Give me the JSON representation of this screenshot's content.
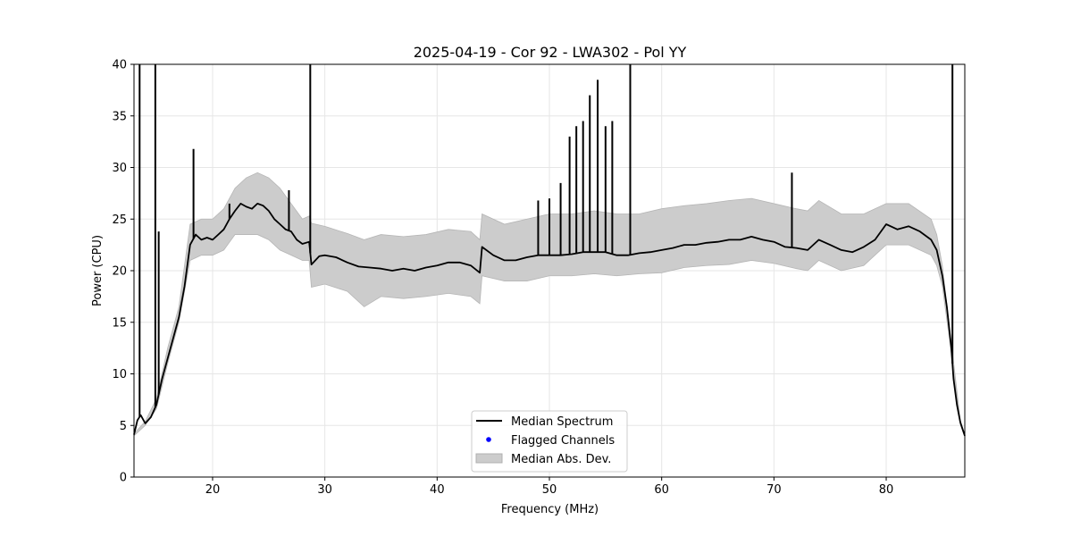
{
  "chart_data": {
    "type": "line",
    "title": "2025-04-19 - Cor 92 - LWA302 - Pol YY",
    "xlabel": "Frequency (MHz)",
    "ylabel": "Power (CPU)",
    "xlim": [
      13.0,
      87.0
    ],
    "ylim": [
      0,
      40
    ],
    "xticks": [
      20,
      30,
      40,
      50,
      60,
      70,
      80
    ],
    "yticks": [
      0,
      5,
      10,
      15,
      20,
      25,
      30,
      35,
      40
    ],
    "grid": true,
    "legend_position": "lower-center",
    "legend": [
      {
        "label": "Median Spectrum",
        "kind": "line",
        "color": "#000000"
      },
      {
        "label": "Flagged Channels",
        "kind": "marker",
        "color": "#0000ff"
      },
      {
        "label": "Median Abs. Dev.",
        "kind": "patch",
        "color": "#cccccc"
      }
    ],
    "series": [
      {
        "name": "Median Spectrum",
        "color": "#000000",
        "points": [
          [
            13.0,
            4.1
          ],
          [
            13.3,
            5.5
          ],
          [
            13.6,
            6.0
          ],
          [
            14.0,
            5.2
          ],
          [
            14.5,
            5.8
          ],
          [
            15.0,
            7.0
          ],
          [
            15.5,
            9.5
          ],
          [
            16.0,
            11.5
          ],
          [
            16.5,
            13.5
          ],
          [
            17.0,
            15.5
          ],
          [
            17.5,
            18.5
          ],
          [
            18.0,
            22.5
          ],
          [
            18.5,
            23.5
          ],
          [
            19.0,
            23.0
          ],
          [
            19.5,
            23.2
          ],
          [
            20.0,
            23.0
          ],
          [
            20.5,
            23.5
          ],
          [
            21.0,
            24.0
          ],
          [
            21.5,
            25.0
          ],
          [
            22.0,
            25.8
          ],
          [
            22.5,
            26.5
          ],
          [
            23.0,
            26.2
          ],
          [
            23.5,
            26.0
          ],
          [
            24.0,
            26.5
          ],
          [
            24.5,
            26.3
          ],
          [
            25.0,
            25.8
          ],
          [
            25.5,
            25.0
          ],
          [
            26.0,
            24.5
          ],
          [
            26.5,
            24.0
          ],
          [
            27.0,
            23.8
          ],
          [
            27.5,
            23.0
          ],
          [
            28.0,
            22.6
          ],
          [
            28.6,
            22.8
          ],
          [
            28.8,
            20.6
          ],
          [
            29.5,
            21.4
          ],
          [
            30.0,
            21.5
          ],
          [
            31.0,
            21.3
          ],
          [
            32.0,
            20.8
          ],
          [
            33.0,
            20.4
          ],
          [
            34.0,
            20.3
          ],
          [
            35.0,
            20.2
          ],
          [
            36.0,
            20.0
          ],
          [
            37.0,
            20.2
          ],
          [
            38.0,
            20.0
          ],
          [
            39.0,
            20.3
          ],
          [
            40.0,
            20.5
          ],
          [
            41.0,
            20.8
          ],
          [
            42.0,
            20.8
          ],
          [
            43.0,
            20.5
          ],
          [
            43.8,
            19.8
          ],
          [
            44.0,
            22.3
          ],
          [
            45.0,
            21.5
          ],
          [
            46.0,
            21.0
          ],
          [
            47.0,
            21.0
          ],
          [
            48.0,
            21.3
          ],
          [
            49.0,
            21.5
          ],
          [
            50.0,
            21.5
          ],
          [
            51.0,
            21.5
          ],
          [
            52.0,
            21.6
          ],
          [
            53.0,
            21.8
          ],
          [
            54.0,
            21.8
          ],
          [
            55.0,
            21.8
          ],
          [
            56.0,
            21.5
          ],
          [
            57.0,
            21.5
          ],
          [
            58.0,
            21.7
          ],
          [
            59.0,
            21.8
          ],
          [
            60.0,
            22.0
          ],
          [
            61.0,
            22.2
          ],
          [
            62.0,
            22.5
          ],
          [
            63.0,
            22.5
          ],
          [
            64.0,
            22.7
          ],
          [
            65.0,
            22.8
          ],
          [
            66.0,
            23.0
          ],
          [
            67.0,
            23.0
          ],
          [
            68.0,
            23.3
          ],
          [
            69.0,
            23.0
          ],
          [
            70.0,
            22.8
          ],
          [
            71.0,
            22.3
          ],
          [
            72.0,
            22.2
          ],
          [
            73.0,
            22.0
          ],
          [
            74.0,
            23.0
          ],
          [
            75.0,
            22.5
          ],
          [
            76.0,
            22.0
          ],
          [
            77.0,
            21.8
          ],
          [
            78.0,
            22.3
          ],
          [
            79.0,
            23.0
          ],
          [
            80.0,
            24.5
          ],
          [
            81.0,
            24.0
          ],
          [
            82.0,
            24.3
          ],
          [
            83.0,
            23.8
          ],
          [
            84.0,
            23.0
          ],
          [
            84.5,
            22.0
          ],
          [
            85.0,
            19.5
          ],
          [
            85.4,
            16.5
          ],
          [
            85.8,
            12.5
          ],
          [
            86.0,
            9.5
          ],
          [
            86.3,
            7.0
          ],
          [
            86.6,
            5.3
          ],
          [
            87.0,
            4.0
          ]
        ]
      },
      {
        "name": "Median Abs. Dev.",
        "color": "#cccccc",
        "band": [
          [
            13.0,
            4.0,
            4.2
          ],
          [
            14.0,
            5.0,
            5.4
          ],
          [
            15.0,
            6.6,
            7.6
          ],
          [
            16.0,
            11.0,
            12.5
          ],
          [
            17.0,
            15.0,
            16.5
          ],
          [
            18.0,
            21.0,
            24.5
          ],
          [
            19.0,
            21.5,
            25.0
          ],
          [
            20.0,
            21.5,
            25.0
          ],
          [
            21.0,
            22.0,
            26.0
          ],
          [
            22.0,
            23.5,
            28.0
          ],
          [
            23.0,
            23.5,
            29.0
          ],
          [
            24.0,
            23.5,
            29.5
          ],
          [
            25.0,
            23.0,
            29.0
          ],
          [
            26.0,
            22.0,
            28.0
          ],
          [
            27.0,
            21.5,
            26.5
          ],
          [
            28.0,
            21.0,
            25.0
          ],
          [
            28.6,
            21.0,
            25.3
          ],
          [
            28.8,
            18.4,
            24.6
          ],
          [
            30.0,
            18.7,
            24.3
          ],
          [
            32.0,
            18.0,
            23.6
          ],
          [
            33.5,
            16.5,
            23.0
          ],
          [
            35.0,
            17.5,
            23.5
          ],
          [
            37.0,
            17.3,
            23.3
          ],
          [
            39.0,
            17.5,
            23.5
          ],
          [
            41.0,
            17.8,
            24.0
          ],
          [
            43.0,
            17.5,
            23.8
          ],
          [
            43.8,
            16.8,
            23.0
          ],
          [
            44.0,
            19.5,
            25.5
          ],
          [
            46.0,
            19.0,
            24.5
          ],
          [
            48.0,
            19.0,
            25.0
          ],
          [
            50.0,
            19.5,
            25.5
          ],
          [
            52.0,
            19.5,
            25.5
          ],
          [
            54.0,
            19.7,
            25.8
          ],
          [
            56.0,
            19.5,
            25.5
          ],
          [
            58.0,
            19.7,
            25.5
          ],
          [
            60.0,
            19.8,
            26.0
          ],
          [
            62.0,
            20.3,
            26.3
          ],
          [
            64.0,
            20.5,
            26.5
          ],
          [
            66.0,
            20.6,
            26.8
          ],
          [
            68.0,
            21.0,
            27.0
          ],
          [
            70.0,
            20.7,
            26.5
          ],
          [
            72.0,
            20.2,
            26.0
          ],
          [
            73.0,
            20.0,
            25.8
          ],
          [
            74.0,
            21.0,
            26.8
          ],
          [
            76.0,
            20.0,
            25.5
          ],
          [
            78.0,
            20.5,
            25.5
          ],
          [
            80.0,
            22.5,
            26.5
          ],
          [
            82.0,
            22.5,
            26.5
          ],
          [
            84.0,
            21.5,
            25.0
          ],
          [
            84.5,
            20.5,
            23.5
          ],
          [
            85.0,
            18.5,
            20.5
          ],
          [
            85.8,
            12.0,
            13.0
          ],
          [
            86.6,
            5.1,
            5.5
          ],
          [
            87.0,
            3.9,
            4.1
          ]
        ]
      }
    ],
    "spikes": [
      [
        13.5,
        40.0
      ],
      [
        14.9,
        40.0
      ],
      [
        15.2,
        23.8
      ],
      [
        18.3,
        31.8
      ],
      [
        21.5,
        26.5
      ],
      [
        26.8,
        27.8
      ],
      [
        28.7,
        40.0
      ],
      [
        49.0,
        26.8
      ],
      [
        50.0,
        27.0
      ],
      [
        51.0,
        28.5
      ],
      [
        51.8,
        33.0
      ],
      [
        52.4,
        34.0
      ],
      [
        53.0,
        34.5
      ],
      [
        53.6,
        37.0
      ],
      [
        54.3,
        38.5
      ],
      [
        55.0,
        34.0
      ],
      [
        55.6,
        34.5
      ],
      [
        57.2,
        40.0
      ],
      [
        71.6,
        29.5
      ],
      [
        85.9,
        40.0
      ]
    ]
  }
}
